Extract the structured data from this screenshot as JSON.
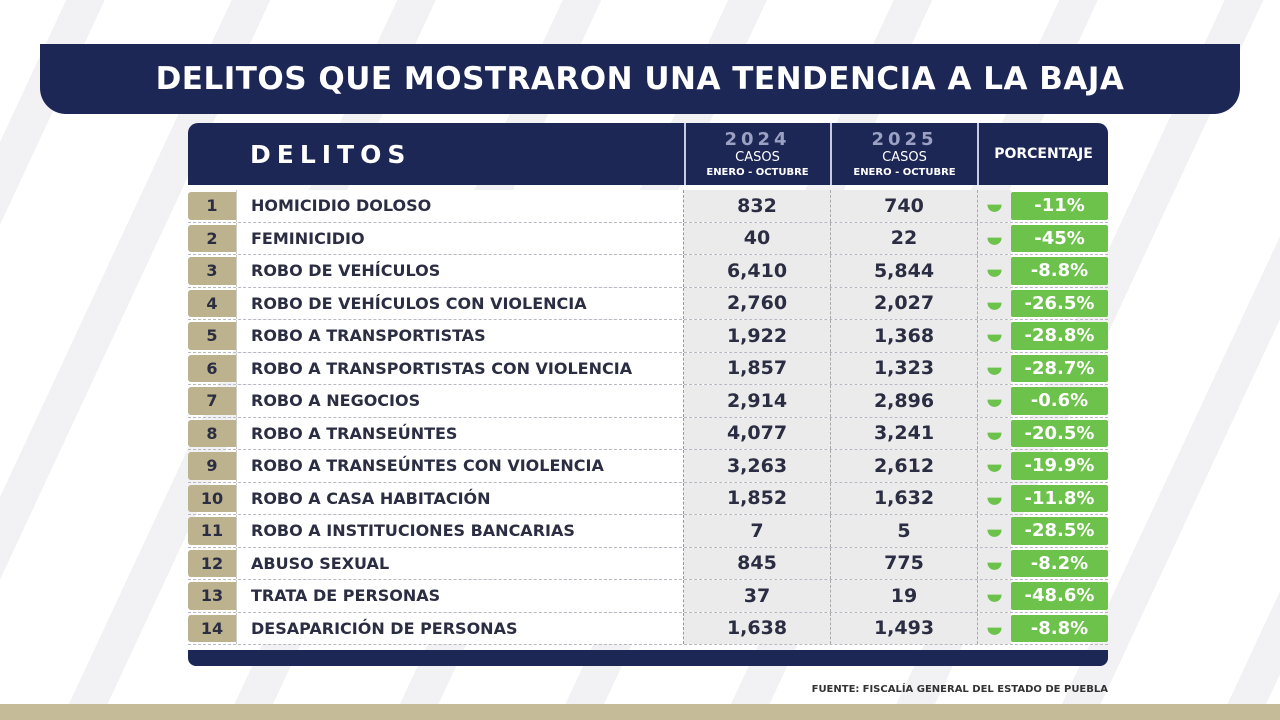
{
  "title": "DELITOS QUE MOSTRARON UNA TENDENCIA A LA BAJA",
  "header": {
    "delitos": "DELITOS",
    "year1": "2024",
    "year2": "2025",
    "casos": "CASOS",
    "periodo": "ENERO - OCTUBRE",
    "porcentaje": "PORCENTAJE"
  },
  "rows": [
    {
      "n": "1",
      "name": "HOMICIDIO DOLOSO",
      "v2024": "832",
      "v2025": "740",
      "pct": "-11%"
    },
    {
      "n": "2",
      "name": "FEMINICIDIO",
      "v2024": "40",
      "v2025": "22",
      "pct": "-45%"
    },
    {
      "n": "3",
      "name": "ROBO DE VEHÍCULOS",
      "v2024": "6,410",
      "v2025": "5,844",
      "pct": "-8.8%"
    },
    {
      "n": "4",
      "name": "ROBO DE VEHÍCULOS CON VIOLENCIA",
      "v2024": "2,760",
      "v2025": "2,027",
      "pct": "-26.5%"
    },
    {
      "n": "5",
      "name": "ROBO A TRANSPORTISTAS",
      "v2024": "1,922",
      "v2025": "1,368",
      "pct": "-28.8%"
    },
    {
      "n": "6",
      "name": "ROBO A TRANSPORTISTAS CON VIOLENCIA",
      "v2024": "1,857",
      "v2025": "1,323",
      "pct": "-28.7%"
    },
    {
      "n": "7",
      "name": "ROBO A NEGOCIOS",
      "v2024": "2,914",
      "v2025": "2,896",
      "pct": "-0.6%"
    },
    {
      "n": "8",
      "name": "ROBO A TRANSEÚNTES",
      "v2024": "4,077",
      "v2025": "3,241",
      "pct": "-20.5%"
    },
    {
      "n": "9",
      "name": "ROBO A TRANSEÚNTES CON VIOLENCIA",
      "v2024": "3,263",
      "v2025": "2,612",
      "pct": "-19.9%"
    },
    {
      "n": "10",
      "name": "ROBO A CASA HABITACIÓN",
      "v2024": "1,852",
      "v2025": "1,632",
      "pct": "-11.8%"
    },
    {
      "n": "11",
      "name": "ROBO A INSTITUCIONES BANCARIAS",
      "v2024": "7",
      "v2025": "5",
      "pct": "-28.5%"
    },
    {
      "n": "12",
      "name": "ABUSO SEXUAL",
      "v2024": "845",
      "v2025": "775",
      "pct": "-8.2%"
    },
    {
      "n": "13",
      "name": "TRATA DE PERSONAS",
      "v2024": "37",
      "v2025": "19",
      "pct": "-48.6%"
    },
    {
      "n": "14",
      "name": "DESAPARICIÓN DE PERSONAS",
      "v2024": "1,638",
      "v2025": "1,493",
      "pct": "-8.8%"
    }
  ],
  "source": {
    "label": "FUENTE:",
    "text": "FISCALÍA GENERAL DEL ESTADO DE PUEBLA"
  },
  "colors": {
    "navy": "#1d2755",
    "green": "#6cc24a",
    "tan": "#bcb28e"
  },
  "icons": {
    "trend": "double-chevron-down-icon"
  }
}
